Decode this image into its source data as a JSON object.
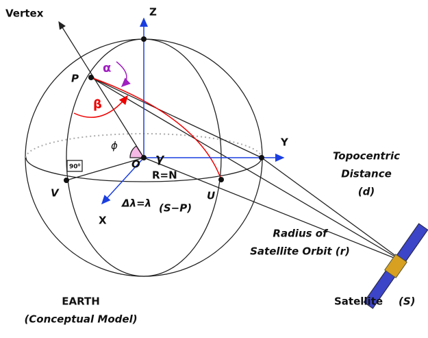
{
  "labels": {
    "vertex": "Vertex",
    "z": "Z",
    "y": "Y",
    "x": "X",
    "p": "P",
    "o": "O",
    "v": "V",
    "u": "U",
    "alpha": "α",
    "beta": "β",
    "phi": "ϕ",
    "gamma": "γ",
    "right_angle": "90⁰",
    "radius": "R=N",
    "delta_lambda": "Δλ=λ",
    "delta_lambda_sub": "(S−P)",
    "topocentric": [
      "Topocentric",
      "Distance",
      "(d)"
    ],
    "orbit": [
      "Radius of",
      "Satellite Orbit (r)"
    ],
    "earth": "EARTH",
    "model": "(Conceptual Model)",
    "satellite": "Satellite",
    "satellite_symbol": "(S)"
  }
}
